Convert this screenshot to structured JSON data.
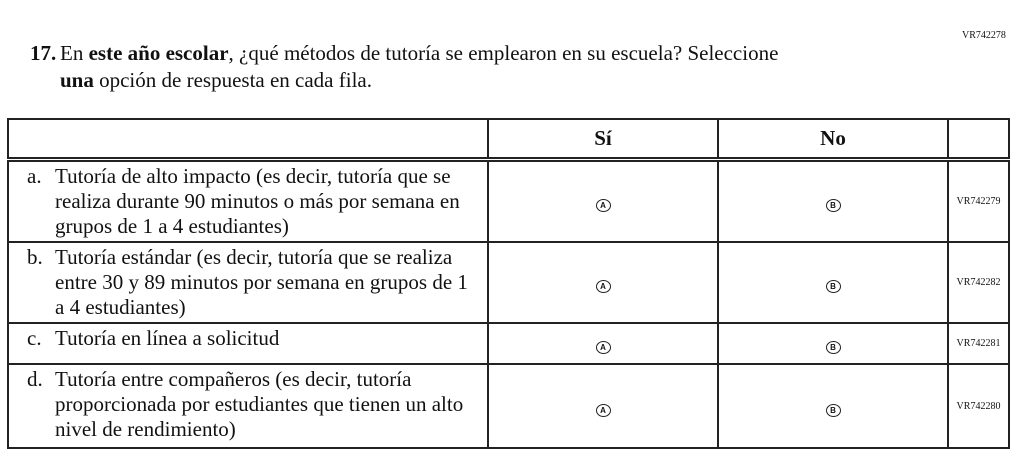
{
  "top_code": "VR742278",
  "question": {
    "number": "17.",
    "pre": "En ",
    "bold1": "este año escolar",
    "mid": ", ¿qué métodos de tutoría se emplearon en su escuela? Seleccione",
    "bold2": "una",
    "post": " opción de respuesta en cada fila."
  },
  "table": {
    "headers": [
      "",
      "Sí",
      "No",
      ""
    ],
    "rows": [
      {
        "letter": "a.",
        "text": "Tutoría de alto impacto (es decir, tutoría que se realiza durante 90 minutos o más por semana en grupos de 1 a 4 estudiantes)",
        "opt_a": "A",
        "opt_b": "B",
        "code": "VR742279"
      },
      {
        "letter": "b.",
        "text": "Tutoría estándar (es decir, tutoría que se realiza entre 30 y 89 minutos por semana en grupos de 1 a 4 estudiantes)",
        "opt_a": "A",
        "opt_b": "B",
        "code": "VR742282"
      },
      {
        "letter": "c.",
        "text": "Tutoría en línea a solicitud",
        "opt_a": "A",
        "opt_b": "B",
        "code": "VR742281"
      },
      {
        "letter": "d.",
        "text": "Tutoría entre compañeros (es decir, tutoría proporcionada por estudiantes que tienen un alto nivel de rendimiento)",
        "opt_a": "A",
        "opt_b": "B",
        "code": "VR742280"
      }
    ]
  }
}
